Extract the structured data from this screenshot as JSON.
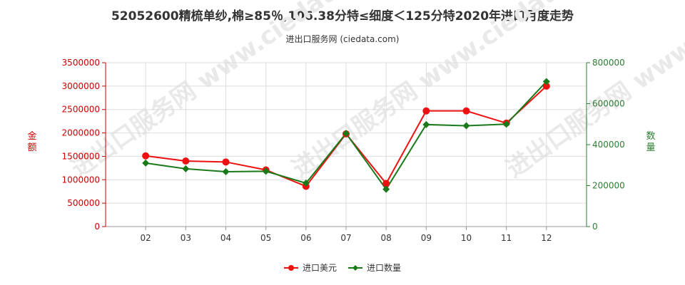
{
  "title": "52052600精梳单纱,棉≥85％,106.38分特≤细度＜125分特2020年进口月度走势",
  "subtitle": "进出口服务网 (ciedata.com)",
  "watermark": "进出口服务网 www.ciedata.com",
  "colors": {
    "usd": "#ee1111",
    "qty": "#1a7a1a",
    "left_axis": "#cc0000",
    "right_axis": "#2e7d32",
    "grid": "#dddddd"
  },
  "chart_data": {
    "type": "line",
    "categories": [
      "02",
      "03",
      "04",
      "05",
      "06",
      "07",
      "08",
      "09",
      "10",
      "11",
      "12"
    ],
    "left_axis": {
      "label": "金额",
      "ylim": [
        0,
        3500000
      ],
      "ticks": [
        0,
        500000,
        1000000,
        1500000,
        2000000,
        2500000,
        3000000,
        3500000
      ]
    },
    "right_axis": {
      "label": "数量",
      "ylim": [
        0,
        800000
      ],
      "ticks": [
        0,
        200000,
        400000,
        600000,
        800000
      ]
    },
    "series": [
      {
        "name": "进口美元",
        "axis": "left",
        "values": [
          1510000,
          1400000,
          1380000,
          1210000,
          860000,
          1980000,
          920000,
          2470000,
          2470000,
          2210000,
          3000000
        ]
      },
      {
        "name": "进口数量",
        "axis": "right",
        "values": [
          310000,
          282000,
          268000,
          270000,
          212000,
          455000,
          182000,
          498000,
          492000,
          500000,
          708000
        ]
      }
    ],
    "grid": true,
    "legend": "bottom-center"
  }
}
